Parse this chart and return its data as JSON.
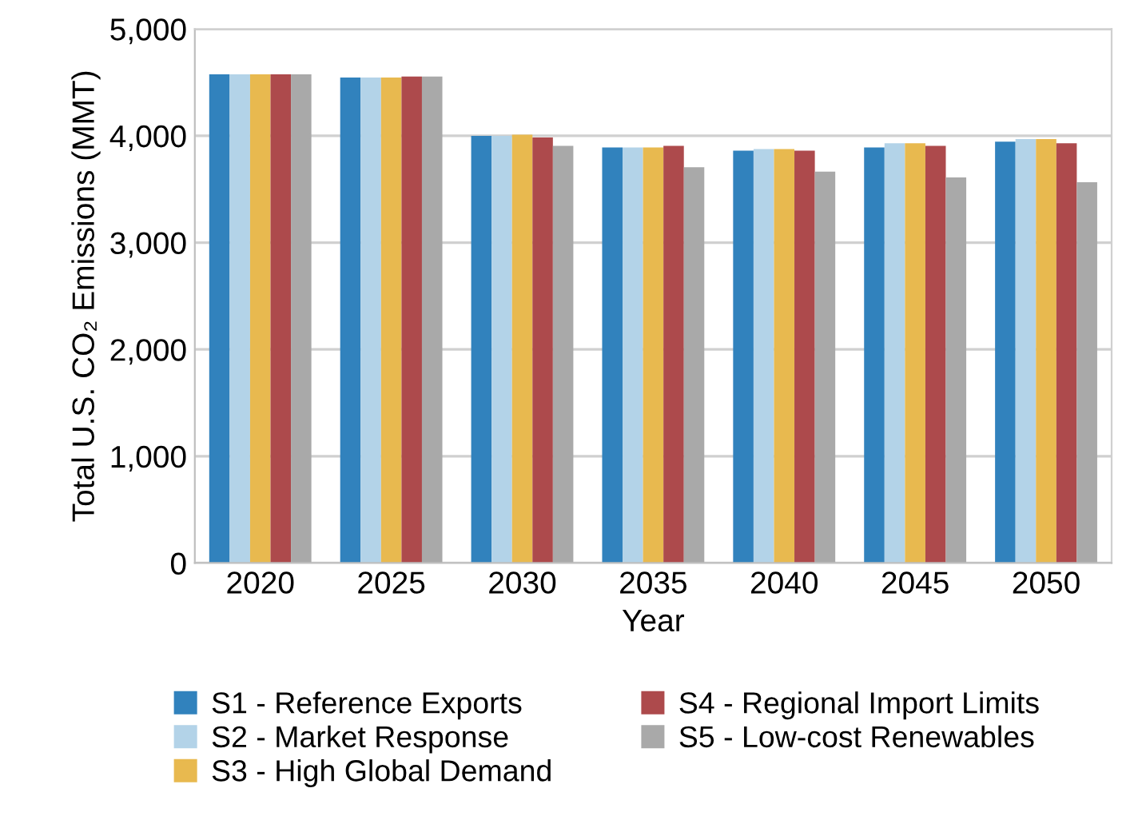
{
  "chart_data": {
    "type": "bar",
    "xlabel": "Year",
    "ylabel": "Total U.S. CO₂ Emissions (MMT)",
    "categories": [
      "2020",
      "2025",
      "2030",
      "2035",
      "2040",
      "2045",
      "2050"
    ],
    "series": [
      {
        "name": "S1 - Reference Exports",
        "color": "#3182bd",
        "values": [
          4575,
          4545,
          4000,
          3890,
          3860,
          3890,
          3945
        ]
      },
      {
        "name": "S2 - Market Response",
        "color": "#b3d3e8",
        "values": [
          4575,
          4545,
          4000,
          3890,
          3875,
          3930,
          3970
        ]
      },
      {
        "name": "S3 - High Global Demand",
        "color": "#e8b94f",
        "values": [
          4575,
          4545,
          4010,
          3890,
          3875,
          3930,
          3970
        ]
      },
      {
        "name": "S4 - Regional Import Limits",
        "color": "#ad4a4c",
        "values": [
          4575,
          4555,
          3985,
          3905,
          3860,
          3905,
          3930
        ]
      },
      {
        "name": "S5 - Low-cost Renewables",
        "color": "#a9a9a9",
        "values": [
          4575,
          4555,
          3905,
          3705,
          3665,
          3610,
          3565
        ]
      }
    ],
    "ylim": [
      0,
      5000
    ],
    "yticks": [
      {
        "value": 0,
        "label": "0"
      },
      {
        "value": 1000,
        "label": "1,000"
      },
      {
        "value": 2000,
        "label": "2,000"
      },
      {
        "value": 3000,
        "label": "3,000"
      },
      {
        "value": 4000,
        "label": "4,000"
      },
      {
        "value": 5000,
        "label": "5,000"
      }
    ],
    "grid": "y",
    "legend": "bottom"
  }
}
